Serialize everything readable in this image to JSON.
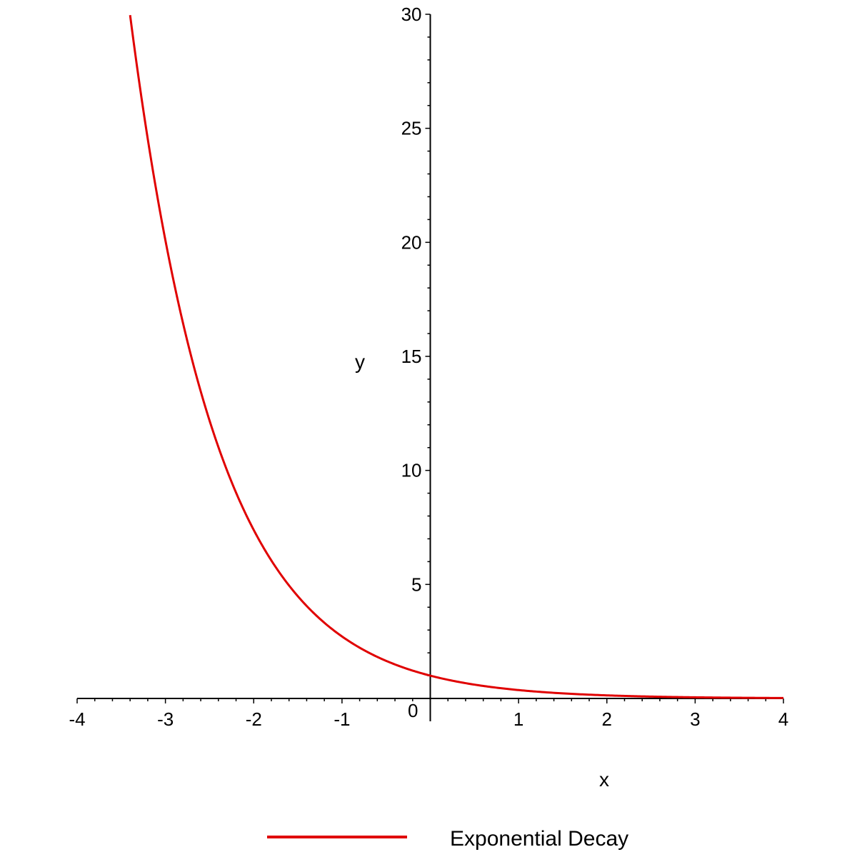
{
  "chart_data": {
    "type": "line",
    "title": "",
    "xlabel": "x",
    "ylabel": "y",
    "xlim": [
      -4,
      4
    ],
    "ylim": [
      0,
      30
    ],
    "x_ticks": [
      "-4",
      "-3",
      "-2",
      "-1",
      "1",
      "2",
      "3",
      "4"
    ],
    "y_ticks": [
      "5",
      "10",
      "15",
      "20",
      "25",
      "30"
    ],
    "origin_label": "0",
    "grid": false,
    "legend_position": "bottom",
    "series": [
      {
        "name": "Exponential Decay",
        "color": "#e00000",
        "function": "exp(-x)",
        "x": [
          -3.4,
          -3.2,
          -3.0,
          -2.8,
          -2.6,
          -2.4,
          -2.2,
          -2.0,
          -1.8,
          -1.6,
          -1.4,
          -1.2,
          -1.0,
          -0.8,
          -0.6,
          -0.4,
          -0.2,
          0.0,
          0.5,
          1.0,
          1.5,
          2.0,
          2.5,
          3.0,
          3.5,
          4.0
        ],
        "y": [
          29.96,
          24.53,
          20.09,
          16.44,
          13.46,
          11.02,
          9.03,
          7.39,
          6.05,
          4.95,
          4.06,
          3.32,
          2.72,
          2.23,
          1.82,
          1.49,
          1.22,
          1.0,
          0.61,
          0.37,
          0.22,
          0.14,
          0.08,
          0.05,
          0.03,
          0.02
        ]
      }
    ]
  }
}
